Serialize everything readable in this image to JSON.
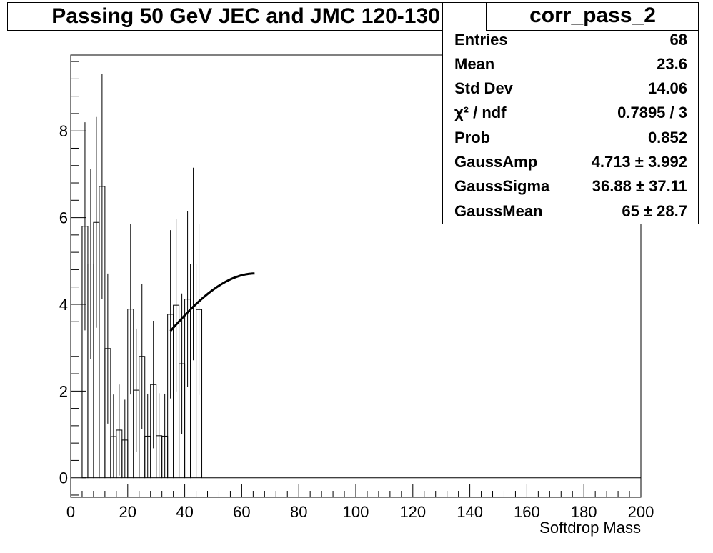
{
  "title": "Passing 50 GeV JEC and JMC 120-130",
  "stats": {
    "name": "corr_pass_2",
    "rows": [
      {
        "key": "Entries",
        "value": "68"
      },
      {
        "key": "Mean",
        "value": "23.6"
      },
      {
        "key": "Std Dev",
        "value": "14.06"
      },
      {
        "key": "χ² / ndf",
        "value": "0.7895 / 3"
      },
      {
        "key": "Prob",
        "value": "0.852"
      },
      {
        "key": "GaussAmp",
        "value": "4.713 ± 3.992"
      },
      {
        "key": "GaussSigma",
        "value": "36.88 ± 37.11"
      },
      {
        "key": "GaussMean",
        "value": "65 ± 28.7"
      }
    ]
  },
  "chart_data": {
    "type": "bar",
    "title": "Passing 50 GeV JEC and JMC 120-130",
    "xlabel": "Softdrop Mass",
    "ylabel": "",
    "xlim": [
      0,
      200
    ],
    "ylim": [
      -0.45,
      9.75
    ],
    "x_ticks": [
      0,
      20,
      40,
      60,
      80,
      100,
      120,
      140,
      160,
      180,
      200
    ],
    "y_ticks": [
      0,
      2,
      4,
      6,
      8
    ],
    "bin_width": 2,
    "bins": [
      {
        "x": 5,
        "y": 5.8,
        "err": 2.4
      },
      {
        "x": 7,
        "y": 4.93,
        "err": 2.2
      },
      {
        "x": 9,
        "y": 5.89,
        "err": 2.43
      },
      {
        "x": 11,
        "y": 6.72,
        "err": 2.59
      },
      {
        "x": 13,
        "y": 2.98,
        "err": 1.73
      },
      {
        "x": 15,
        "y": 0.95,
        "err": 0.97
      },
      {
        "x": 17,
        "y": 1.1,
        "err": 1.05
      },
      {
        "x": 19,
        "y": 0.87,
        "err": 0.93
      },
      {
        "x": 21,
        "y": 3.89,
        "err": 1.97
      },
      {
        "x": 23,
        "y": 2.02,
        "err": 1.42
      },
      {
        "x": 25,
        "y": 2.8,
        "err": 1.67
      },
      {
        "x": 27,
        "y": 0.96,
        "err": 0.98
      },
      {
        "x": 29,
        "y": 2.15,
        "err": 1.47
      },
      {
        "x": 31,
        "y": 0.97,
        "err": 0.98
      },
      {
        "x": 33,
        "y": 0.96,
        "err": 0.98
      },
      {
        "x": 35,
        "y": 3.77,
        "err": 1.94
      },
      {
        "x": 37,
        "y": 3.98,
        "err": 1.99
      },
      {
        "x": 39,
        "y": 2.63,
        "err": 1.62
      },
      {
        "x": 41,
        "y": 4.12,
        "err": 2.03
      },
      {
        "x": 43,
        "y": 4.93,
        "err": 2.22
      },
      {
        "x": 45,
        "y": 3.88,
        "err": 1.97
      }
    ],
    "fit": {
      "function": "gaussian",
      "amp": 4.713,
      "sigma": 36.88,
      "mean": 65,
      "x_range": [
        35,
        64.5
      ]
    },
    "grid": false,
    "legend": "top-right"
  }
}
